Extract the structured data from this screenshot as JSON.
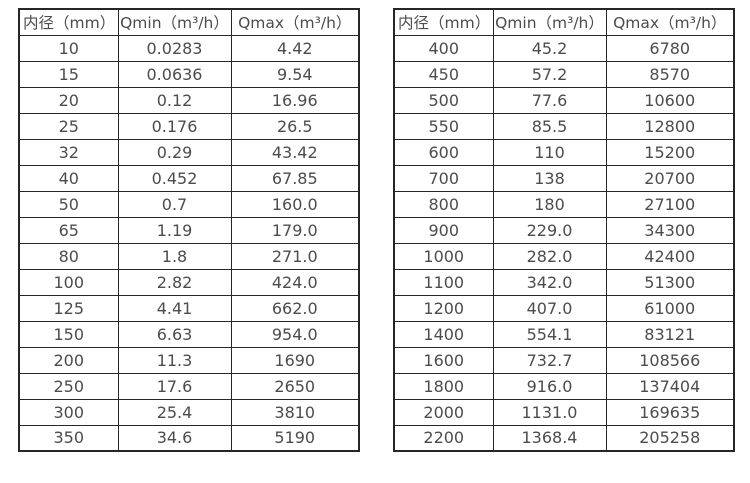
{
  "page": {
    "background_color": "#ffffff",
    "border_color": "#262626",
    "text_color": "#4c4c4c"
  },
  "tables": [
    {
      "name": "flow-rate-table-small-diameters",
      "headers": [
        "内径（mm）",
        "Qmin（m³/h）",
        "Qmax（m³/h）"
      ],
      "rows": [
        [
          "10",
          "0.0283",
          "4.42"
        ],
        [
          "15",
          "0.0636",
          "9.54"
        ],
        [
          "20",
          "0.12",
          "16.96"
        ],
        [
          "25",
          "0.176",
          "26.5"
        ],
        [
          "32",
          "0.29",
          "43.42"
        ],
        [
          "40",
          "0.452",
          "67.85"
        ],
        [
          "50",
          "0.7",
          "160.0"
        ],
        [
          "65",
          "1.19",
          "179.0"
        ],
        [
          "80",
          "1.8",
          "271.0"
        ],
        [
          "100",
          "2.82",
          "424.0"
        ],
        [
          "125",
          "4.41",
          "662.0"
        ],
        [
          "150",
          "6.63",
          "954.0"
        ],
        [
          "200",
          "11.3",
          "1690"
        ],
        [
          "250",
          "17.6",
          "2650"
        ],
        [
          "300",
          "25.4",
          "3810"
        ],
        [
          "350",
          "34.6",
          "5190"
        ]
      ]
    },
    {
      "name": "flow-rate-table-large-diameters",
      "headers": [
        "内径（mm）",
        "Qmin（m³/h）",
        "Qmax（m³/h）"
      ],
      "rows": [
        [
          "400",
          "45.2",
          "6780"
        ],
        [
          "450",
          "57.2",
          "8570"
        ],
        [
          "500",
          "77.6",
          "10600"
        ],
        [
          "550",
          "85.5",
          "12800"
        ],
        [
          "600",
          "110",
          "15200"
        ],
        [
          "700",
          "138",
          "20700"
        ],
        [
          "800",
          "180",
          "27100"
        ],
        [
          "900",
          "229.0",
          "34300"
        ],
        [
          "1000",
          "282.0",
          "42400"
        ],
        [
          "1100",
          "342.0",
          "51300"
        ],
        [
          "1200",
          "407.0",
          "61000"
        ],
        [
          "1400",
          "554.1",
          "83121"
        ],
        [
          "1600",
          "732.7",
          "108566"
        ],
        [
          "1800",
          "916.0",
          "137404"
        ],
        [
          "2000",
          "1131.0",
          "169635"
        ],
        [
          "2200",
          "1368.4",
          "205258"
        ]
      ]
    }
  ]
}
